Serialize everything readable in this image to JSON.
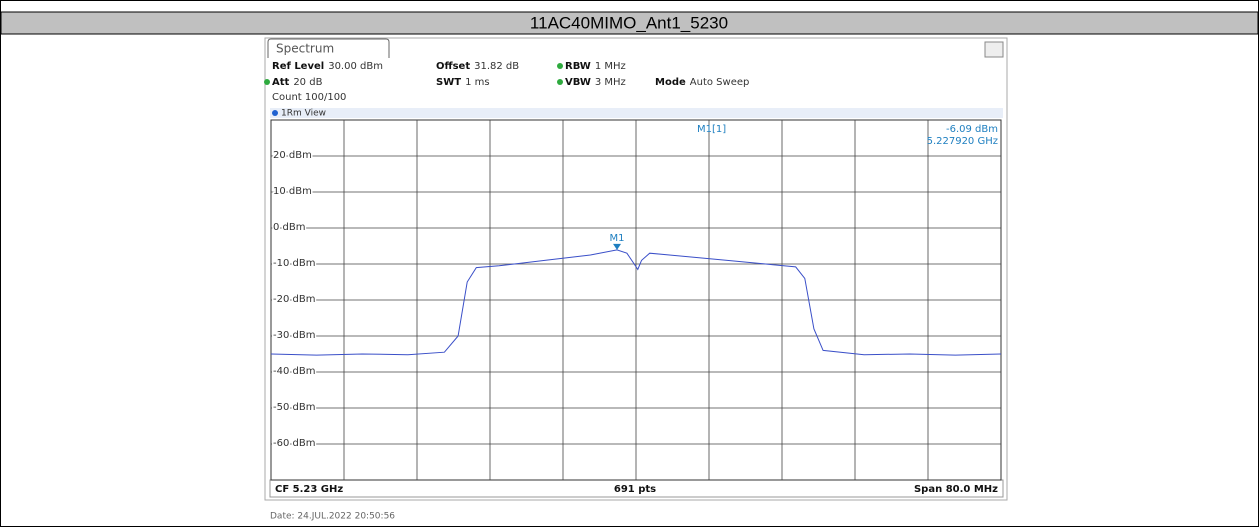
{
  "header": {
    "title": "11AC40MIMO_Ant1_5230"
  },
  "panel": {
    "tab": "Spectrum",
    "settings": [
      [
        "Ref Level",
        "30.00 dBm"
      ],
      [
        "Offset",
        "31.82 dB"
      ],
      [
        "RBW",
        "1 MHz"
      ],
      [
        "Att",
        "20 dB"
      ],
      [
        "SWT",
        "1 ms"
      ],
      [
        "VBW",
        "3 MHz"
      ],
      [
        "Mode",
        "Auto Sweep"
      ]
    ],
    "count": "Count 100/100",
    "view": "1Rm View",
    "footer": {
      "left": "CF 5.23 GHz",
      "center": "691 pts",
      "right": "Span 80.0 MHz"
    },
    "date": "Date: 24.JUL.2022  20:50:56"
  },
  "chart_data": {
    "type": "line",
    "color": "#3a4fc8",
    "xlim": [
      5.19,
      5.27
    ],
    "ylim": [
      -70,
      30
    ],
    "yticks": [
      {
        "value": 20,
        "label": "20 dBm"
      },
      {
        "value": 10,
        "label": "10 dBm"
      },
      {
        "value": 0,
        "label": "0 dBm"
      },
      {
        "value": -10,
        "label": "-10 dBm"
      },
      {
        "value": -20,
        "label": "-20 dBm"
      },
      {
        "value": -30,
        "label": "-30 dBm"
      },
      {
        "value": -40,
        "label": "-40 dBm"
      },
      {
        "value": -50,
        "label": "-50 dBm"
      },
      {
        "value": -60,
        "label": "-60 dBm"
      }
    ],
    "x": [
      5.19,
      5.195,
      5.2,
      5.205,
      5.209,
      5.2105,
      5.2115,
      5.2125,
      5.215,
      5.22,
      5.225,
      5.22792,
      5.229,
      5.2298,
      5.2302,
      5.2306,
      5.2315,
      5.235,
      5.24,
      5.245,
      5.2475,
      5.2485,
      5.2495,
      5.2505,
      5.255,
      5.26,
      5.265,
      5.27
    ],
    "values": [
      -35,
      -35.3,
      -35,
      -35.2,
      -34.5,
      -30,
      -15,
      -11,
      -10.5,
      -9,
      -7.5,
      -6.09,
      -7,
      -10,
      -11.5,
      -9,
      -7,
      -7.8,
      -9,
      -10.2,
      -10.8,
      -14,
      -28,
      -34,
      -35.2,
      -35,
      -35.3,
      -35
    ],
    "marker": {
      "name": "M1",
      "readout": "M1[1]",
      "x": 5.22792,
      "x_label": "5.227920 GHz",
      "value": -6.09,
      "value_label": "-6.09 dBm"
    }
  }
}
